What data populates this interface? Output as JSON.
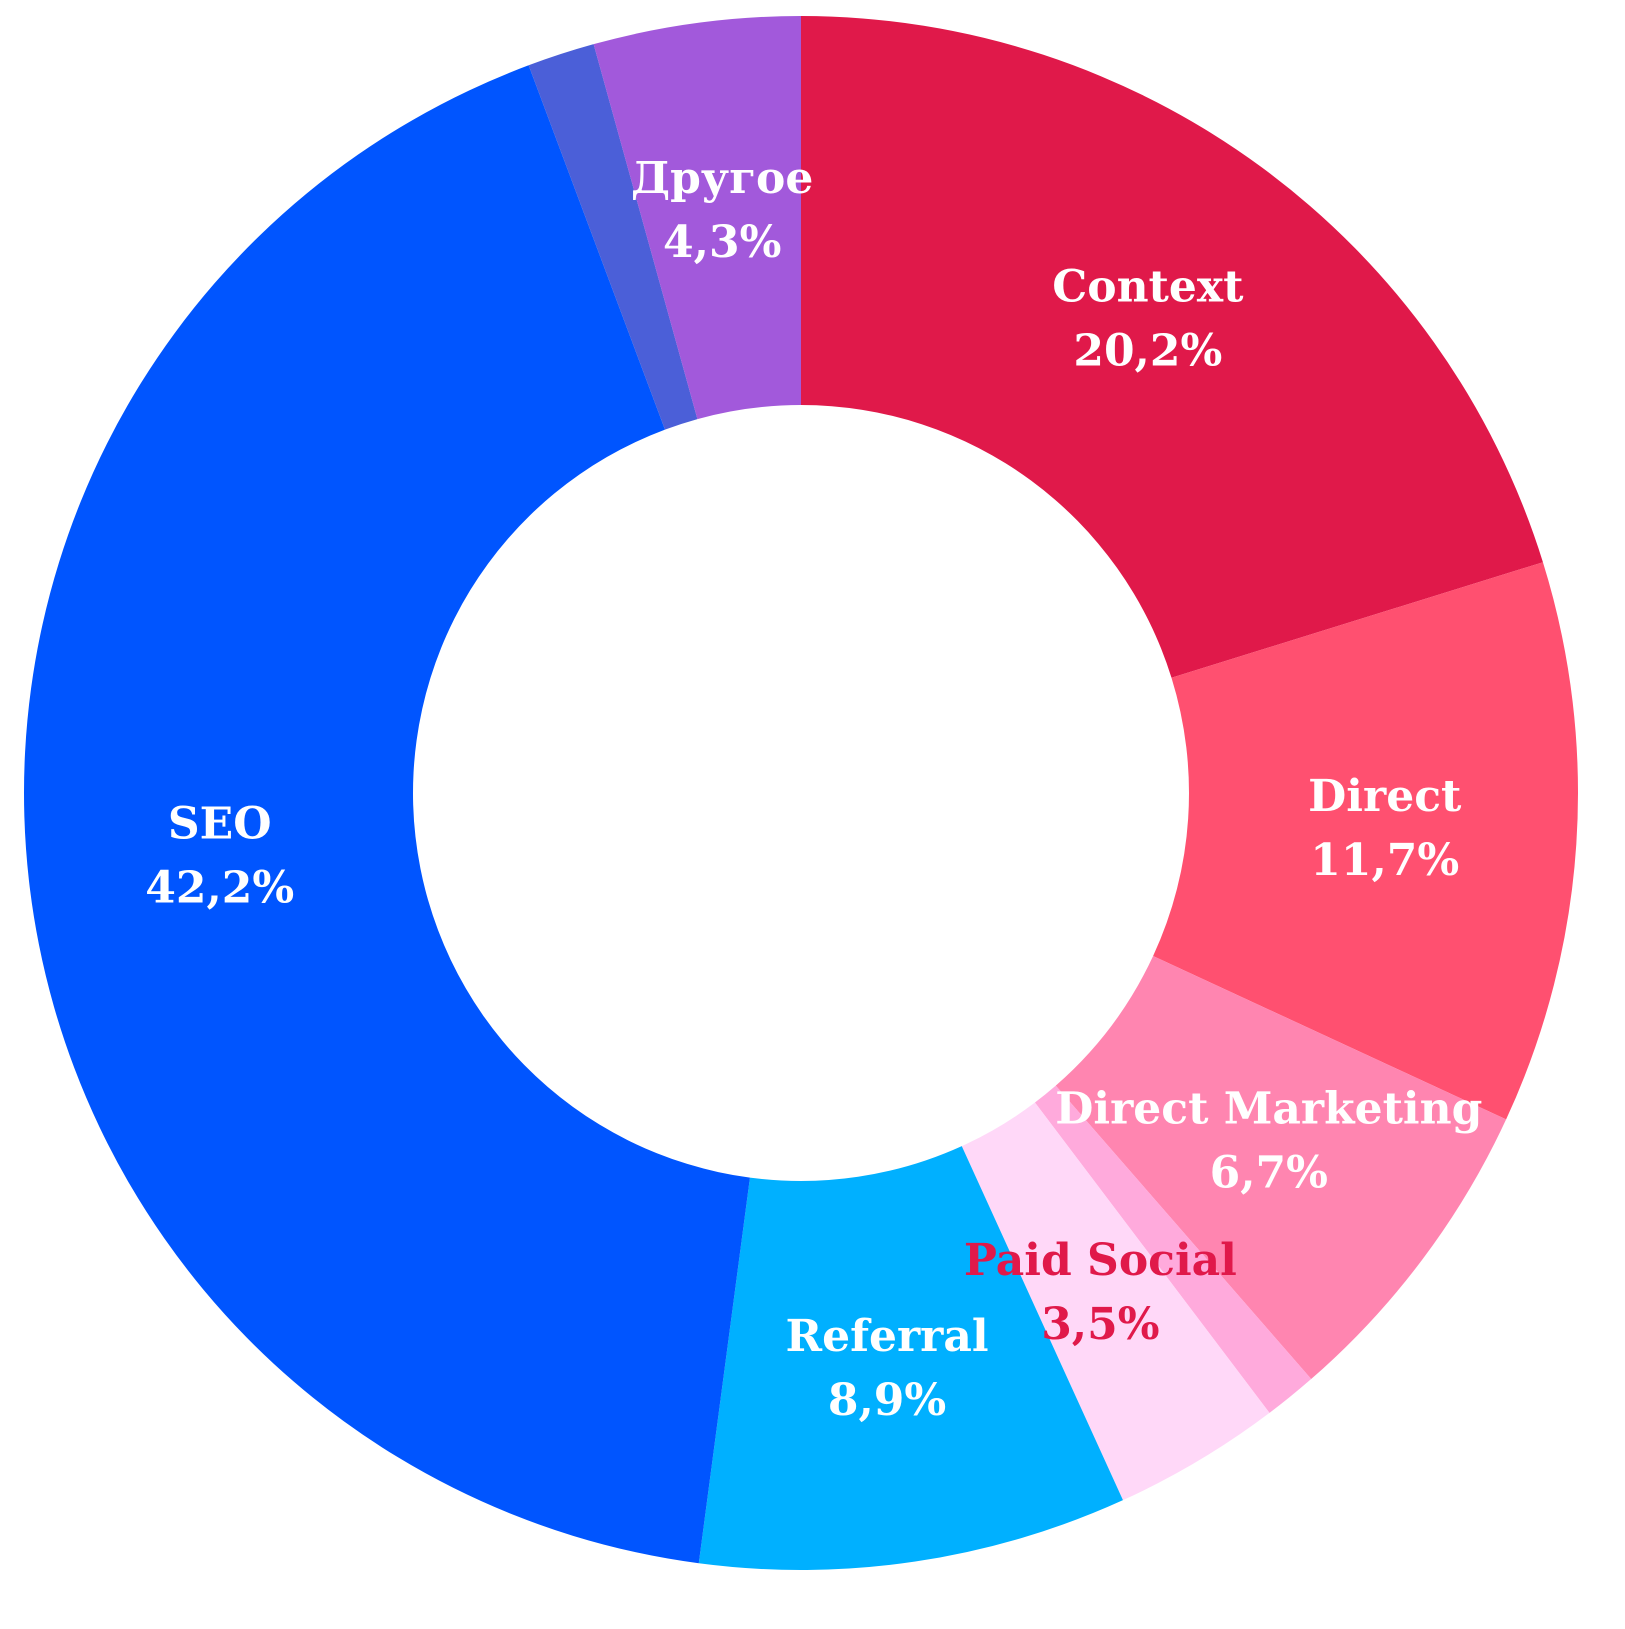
{
  "chart_data": {
    "type": "donut",
    "categories": [
      "Context",
      "Direct",
      "Direct Marketing",
      null,
      "Paid Social",
      "Referral",
      "SEO",
      null,
      "Другое"
    ],
    "values": [
      20.2,
      11.7,
      6.7,
      1.1,
      3.5,
      8.9,
      42.2,
      1.4,
      4.3
    ],
    "value_labels": [
      "20,2%",
      "11,7%",
      "6,7%",
      null,
      "3,5%",
      "8,9%",
      "42,2%",
      null,
      "4,3%"
    ],
    "colors": [
      "#e0194a",
      "#ff5070",
      "#ff85b0",
      "#ffaadc",
      "#ffd8f8",
      "#00b0ff",
      "#0055ff",
      "#4b5fd8",
      "#a259db"
    ],
    "label_colors": [
      "#ffffff",
      "#ffffff",
      "#ffffff",
      null,
      "#e0194a",
      "#ffffff",
      "#ffffff",
      null,
      "#ffffff"
    ]
  }
}
